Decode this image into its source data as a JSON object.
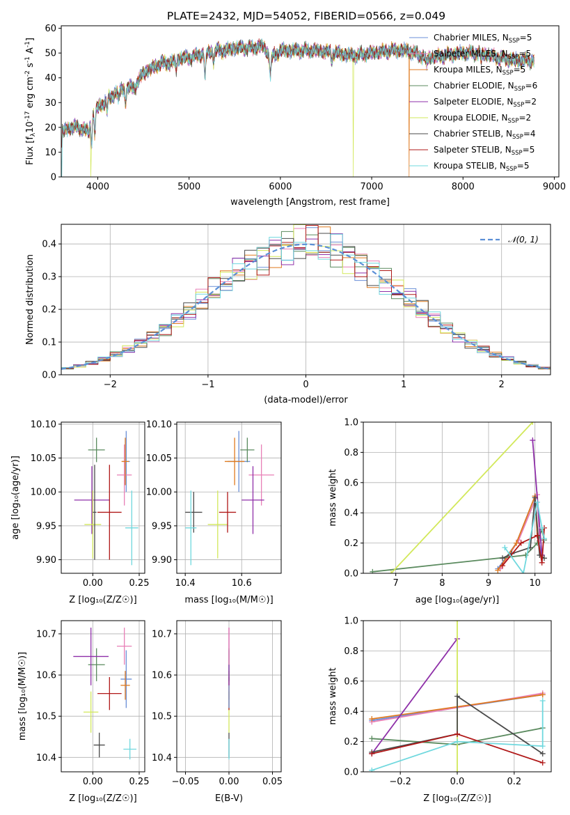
{
  "title": "PLATE=2432, MJD=54052, FIBERID=0566, z=0.049",
  "colors": {
    "Chabrier MILES": "#6a8fd8",
    "Salpeter MILES": "#e87fb6",
    "Kroupa MILES": "#e07a1f",
    "Chabrier ELODIE": "#5a8a5e",
    "Salpeter ELODIE": "#8e2fa8",
    "Kroupa ELODIE": "#d2e85a",
    "Chabrier STELIB": "#4a4a4a",
    "Salpeter STELIB": "#b01818",
    "Kroupa STELIB": "#6fd8de",
    "normal": "#5b8fd6"
  },
  "chart_data": [
    {
      "id": "spectrum",
      "type": "line",
      "xlabel": "wavelength [Angstrom, rest frame]",
      "ylabel_parts": [
        "Flux [f",
        "λ",
        "10",
        "-17",
        " erg cm",
        "-2",
        " s",
        "-1",
        " A",
        "-1",
        "]"
      ],
      "xlim": [
        3600,
        9050
      ],
      "ylim": [
        0,
        61
      ],
      "xticks": [
        4000,
        5000,
        6000,
        7000,
        8000,
        9000
      ],
      "yticks": [
        0,
        10,
        20,
        30,
        40,
        50,
        60
      ],
      "anchors": [
        [
          3600,
          18
        ],
        [
          3700,
          20
        ],
        [
          3800,
          20
        ],
        [
          3900,
          18
        ],
        [
          3950,
          26
        ],
        [
          4000,
          28
        ],
        [
          4100,
          31
        ],
        [
          4200,
          34
        ],
        [
          4300,
          36
        ],
        [
          4400,
          36
        ],
        [
          4500,
          42
        ],
        [
          4600,
          44
        ],
        [
          4700,
          46
        ],
        [
          4800,
          46
        ],
        [
          4900,
          48
        ],
        [
          5000,
          48
        ],
        [
          5100,
          49
        ],
        [
          5200,
          50
        ],
        [
          5300,
          51
        ],
        [
          5400,
          51
        ],
        [
          5500,
          52
        ],
        [
          5600,
          52
        ],
        [
          5700,
          52
        ],
        [
          5800,
          53
        ],
        [
          5900,
          48
        ],
        [
          6000,
          51
        ],
        [
          6200,
          51
        ],
        [
          6400,
          51
        ],
        [
          6600,
          50
        ],
        [
          6800,
          49
        ],
        [
          7000,
          50
        ],
        [
          7200,
          51
        ],
        [
          7400,
          51
        ],
        [
          7600,
          48
        ],
        [
          7800,
          49
        ],
        [
          8000,
          50
        ],
        [
          8200,
          50
        ],
        [
          8400,
          48
        ],
        [
          8600,
          47
        ],
        [
          8780,
          47
        ]
      ],
      "dips": [
        [
          3933,
          10
        ],
        [
          3968,
          9
        ],
        [
          4102,
          5
        ],
        [
          4227,
          4
        ],
        [
          4304,
          6
        ],
        [
          4861,
          4
        ],
        [
          5175,
          10
        ],
        [
          5270,
          4
        ],
        [
          5890,
          8
        ],
        [
          6563,
          3
        ],
        [
          7600,
          3
        ],
        [
          8200,
          3
        ]
      ],
      "drops": [
        [
          3608,
          "Kroupa STELIB"
        ],
        [
          3925,
          "Kroupa ELODIE"
        ],
        [
          6800,
          "Kroupa ELODIE"
        ],
        [
          7408,
          "Kroupa MILES"
        ]
      ],
      "legend": [
        {
          "imf": "Chabrier MILES",
          "nssp": "5"
        },
        {
          "imf": "Salpeter MILES",
          "nssp": "5"
        },
        {
          "imf": "Kroupa MILES",
          "nssp": "5"
        },
        {
          "imf": "Chabrier ELODIE",
          "nssp": "6"
        },
        {
          "imf": "Salpeter ELODIE",
          "nssp": "2"
        },
        {
          "imf": "Kroupa ELODIE",
          "nssp": "2"
        },
        {
          "imf": "Chabrier STELIB",
          "nssp": "4"
        },
        {
          "imf": "Salpeter STELIB",
          "nssp": "5"
        },
        {
          "imf": "Kroupa STELIB",
          "nssp": "5"
        }
      ]
    },
    {
      "id": "residual-histogram",
      "type": "bar",
      "xlabel": "(data-model)/error",
      "ylabel": "Normed distribution",
      "xlim": [
        -2.5,
        2.5
      ],
      "ylim": [
        0,
        0.46
      ],
      "xticks": [
        -2,
        -1,
        0,
        1,
        2
      ],
      "yticks": [
        0.0,
        0.1,
        0.2,
        0.3,
        0.4
      ],
      "bin_width": 0.125,
      "legend_label": "𝒩(0, 1)",
      "series_names": [
        "Chabrier MILES",
        "Salpeter MILES",
        "Kroupa MILES",
        "Chabrier ELODIE",
        "Salpeter ELODIE",
        "Kroupa ELODIE",
        "Chabrier STELIB",
        "Salpeter STELIB",
        "Kroupa STELIB"
      ]
    },
    {
      "id": "age-vs-z",
      "type": "scatter",
      "xlabel": "Z [log₁₀(Z/Z☉)]",
      "ylabel": "age  [log₁₀(age/yr)]",
      "xlim": [
        -0.17,
        0.28
      ],
      "ylim": [
        9.88,
        10.103
      ],
      "xticks": [
        0.0,
        0.25
      ],
      "yticks": [
        9.9,
        9.95,
        10.0,
        10.05,
        10.1
      ],
      "points": [
        {
          "series": "Chabrier MILES",
          "x": 0.18,
          "xe": 0.02,
          "y": 10.045,
          "ye": 0.045
        },
        {
          "series": "Salpeter MILES",
          "x": 0.17,
          "xe": 0.04,
          "y": 10.025,
          "ye": 0.045
        },
        {
          "series": "Kroupa MILES",
          "x": 0.175,
          "xe": 0.02,
          "y": 10.045,
          "ye": 0.035
        },
        {
          "series": "Chabrier ELODIE",
          "x": 0.02,
          "xe": 0.045,
          "y": 10.062,
          "ye": 0.018
        },
        {
          "series": "Salpeter ELODIE",
          "x": -0.005,
          "xe": 0.095,
          "y": 9.988,
          "ye": 0.05
        },
        {
          "series": "Kroupa ELODIE",
          "x": 0.0,
          "xe": 0.045,
          "y": 9.952,
          "ye": 0.05
        },
        {
          "series": "Chabrier STELIB",
          "x": 0.01,
          "xe": 0.01,
          "y": 9.97,
          "ye": 0.07
        },
        {
          "series": "Salpeter STELIB",
          "x": 0.09,
          "xe": 0.065,
          "y": 9.97,
          "ye": 0.07
        },
        {
          "series": "Kroupa STELIB",
          "x": 0.21,
          "xe": 0.035,
          "y": 9.947,
          "ye": 0.055
        }
      ]
    },
    {
      "id": "age-vs-mass",
      "type": "scatter",
      "xlabel": "mass [log₁₀(M/M☉)]",
      "ylabel": "",
      "xlim": [
        10.37,
        10.74
      ],
      "ylim": [
        9.88,
        10.103
      ],
      "xticks": [
        10.4,
        10.6
      ],
      "yticks": [
        9.9,
        9.95,
        10.0,
        10.05,
        10.1
      ],
      "points": [
        {
          "series": "Chabrier MILES",
          "x": 10.59,
          "xe": 0.04,
          "y": 10.045,
          "ye": 0.045
        },
        {
          "series": "Salpeter MILES",
          "x": 10.67,
          "xe": 0.045,
          "y": 10.025,
          "ye": 0.045
        },
        {
          "series": "Kroupa MILES",
          "x": 10.575,
          "xe": 0.035,
          "y": 10.045,
          "ye": 0.035
        },
        {
          "series": "Chabrier ELODIE",
          "x": 10.62,
          "xe": 0.025,
          "y": 10.062,
          "ye": 0.018
        },
        {
          "series": "Salpeter ELODIE",
          "x": 10.64,
          "xe": 0.04,
          "y": 9.988,
          "ye": 0.05
        },
        {
          "series": "Kroupa ELODIE",
          "x": 10.515,
          "xe": 0.035,
          "y": 9.952,
          "ye": 0.05
        },
        {
          "series": "Chabrier STELIB",
          "x": 10.43,
          "xe": 0.03,
          "y": 9.97,
          "ye": 0.03
        },
        {
          "series": "Salpeter STELIB",
          "x": 10.55,
          "xe": 0.03,
          "y": 9.97,
          "ye": 0.03
        },
        {
          "series": "Kroupa STELIB",
          "x": 10.42,
          "xe": 0.02,
          "y": 9.947,
          "ye": 0.055
        }
      ]
    },
    {
      "id": "massweight-vs-age",
      "type": "line",
      "xlabel": "age  [log₁₀(age/yr)]",
      "ylabel": "mass weight",
      "xlim": [
        6.3,
        10.35
      ],
      "ylim": [
        0,
        1.0
      ],
      "xticks": [
        7,
        8,
        9,
        10
      ],
      "yticks": [
        0.0,
        0.2,
        0.4,
        0.6,
        0.8,
        1.0
      ],
      "series": [
        {
          "name": "Chabrier MILES",
          "x": [
            9.2,
            9.6,
            10.0,
            10.05,
            10.15
          ],
          "y": [
            0.03,
            0.2,
            0.51,
            0.25,
            0.12
          ]
        },
        {
          "name": "Salpeter MILES",
          "x": [
            9.25,
            9.65,
            10.05,
            10.1
          ],
          "y": [
            0.03,
            0.22,
            0.52,
            0.22
          ]
        },
        {
          "name": "Kroupa MILES",
          "x": [
            9.2,
            9.6,
            10.0,
            10.05
          ],
          "y": [
            0.02,
            0.2,
            0.51,
            0.25
          ]
        },
        {
          "name": "Chabrier ELODIE",
          "x": [
            6.5,
            9.8,
            10.05,
            10.15,
            10.2
          ],
          "y": [
            0.01,
            0.12,
            0.2,
            0.29,
            0.22
          ]
        },
        {
          "name": "Salpeter ELODIE",
          "x": [
            9.95,
            10.15
          ],
          "y": [
            0.88,
            0.12
          ]
        },
        {
          "name": "Kroupa ELODIE",
          "x": [
            6.9,
            9.95
          ],
          "y": [
            0.0,
            1.0
          ]
        },
        {
          "name": "Chabrier STELIB",
          "x": [
            9.3,
            9.5,
            9.9,
            10.0,
            10.1,
            10.2
          ],
          "y": [
            0.1,
            0.13,
            0.17,
            0.5,
            0.12,
            0.1
          ]
        },
        {
          "name": "Salpeter STELIB",
          "x": [
            9.3,
            9.7,
            10.05,
            10.15,
            10.2
          ],
          "y": [
            0.05,
            0.2,
            0.25,
            0.07,
            0.3
          ]
        },
        {
          "name": "Kroupa STELIB",
          "x": [
            9.35,
            9.75,
            10.05,
            10.15,
            10.2
          ],
          "y": [
            0.17,
            0.0,
            0.47,
            0.3,
            0.23
          ]
        }
      ]
    },
    {
      "id": "mass-vs-z",
      "type": "scatter",
      "xlabel": "Z [log₁₀(Z/Z☉)]",
      "ylabel": "mass [log₁₀(M/M☉)]",
      "xlim": [
        -0.17,
        0.28
      ],
      "ylim": [
        10.365,
        10.732
      ],
      "xticks": [
        0.0,
        0.25
      ],
      "yticks": [
        10.4,
        10.5,
        10.6,
        10.7
      ],
      "points": [
        {
          "series": "Chabrier MILES",
          "x": 0.18,
          "xe": 0.03,
          "y": 10.59,
          "ye": 0.07
        },
        {
          "series": "Salpeter MILES",
          "x": 0.17,
          "xe": 0.04,
          "y": 10.67,
          "ye": 0.045
        },
        {
          "series": "Kroupa MILES",
          "x": 0.175,
          "xe": 0.025,
          "y": 10.575,
          "ye": 0.035
        },
        {
          "series": "Chabrier ELODIE",
          "x": 0.02,
          "xe": 0.045,
          "y": 10.625,
          "ye": 0.04
        },
        {
          "series": "Salpeter ELODIE",
          "x": -0.01,
          "xe": 0.095,
          "y": 10.645,
          "ye": 0.07
        },
        {
          "series": "Kroupa ELODIE",
          "x": -0.01,
          "xe": 0.04,
          "y": 10.51,
          "ye": 0.05
        },
        {
          "series": "Chabrier STELIB",
          "x": 0.035,
          "xe": 0.03,
          "y": 10.43,
          "ye": 0.03
        },
        {
          "series": "Salpeter STELIB",
          "x": 0.09,
          "xe": 0.065,
          "y": 10.555,
          "ye": 0.04
        },
        {
          "series": "Kroupa STELIB",
          "x": 0.2,
          "xe": 0.035,
          "y": 10.42,
          "ye": 0.025
        }
      ]
    },
    {
      "id": "mass-vs-ebv",
      "type": "scatter",
      "xlabel": "E(B-V)",
      "ylabel": "",
      "xlim": [
        -0.06,
        0.06
      ],
      "ylim": [
        10.365,
        10.732
      ],
      "xticks": [
        -0.05,
        0.0,
        0.05
      ],
      "xtick_labels": [
        "−0.05",
        "0.00",
        "0.05"
      ],
      "yticks": [
        10.4,
        10.5,
        10.6,
        10.7
      ],
      "points": [
        {
          "series": "Chabrier STELIB",
          "x": 0,
          "y": 10.43,
          "ye": 0.03
        },
        {
          "series": "Kroupa STELIB",
          "x": 0,
          "y": 10.42,
          "ye": 0.025
        },
        {
          "series": "Kroupa ELODIE",
          "x": 0,
          "y": 10.51,
          "ye": 0.05
        },
        {
          "series": "Salpeter STELIB",
          "x": 0,
          "y": 10.555,
          "ye": 0.04
        },
        {
          "series": "Kroupa MILES",
          "x": 0,
          "y": 10.575,
          "ye": 0.035
        },
        {
          "series": "Chabrier MILES",
          "x": 0,
          "y": 10.59,
          "ye": 0.07
        },
        {
          "series": "Chabrier ELODIE",
          "x": 0,
          "y": 10.625,
          "ye": 0.04
        },
        {
          "series": "Salpeter ELODIE",
          "x": 0,
          "y": 10.645,
          "ye": 0.07
        },
        {
          "series": "Salpeter MILES",
          "x": 0,
          "y": 10.67,
          "ye": 0.045
        }
      ]
    },
    {
      "id": "massweight-vs-z",
      "type": "line",
      "xlabel": "Z [log₁₀(Z/Z☉)]",
      "ylabel": "mass weight",
      "xlim": [
        -0.33,
        0.33
      ],
      "ylim": [
        0,
        1.0
      ],
      "xticks": [
        -0.2,
        0.0,
        0.2
      ],
      "xtick_labels": [
        "−0.2",
        "0.0",
        "0.2"
      ],
      "yticks": [
        0.0,
        0.2,
        0.4,
        0.6,
        0.8,
        1.0
      ],
      "series": [
        {
          "name": "Chabrier MILES",
          "x": [
            -0.3,
            0.3
          ],
          "y": [
            0.34,
            0.51
          ]
        },
        {
          "name": "Salpeter MILES",
          "x": [
            -0.3,
            0.3
          ],
          "y": [
            0.33,
            0.52
          ]
        },
        {
          "name": "Kroupa MILES",
          "x": [
            -0.3,
            0.3
          ],
          "y": [
            0.35,
            0.51
          ]
        },
        {
          "name": "Chabrier ELODIE",
          "x": [
            -0.3,
            0.0,
            0.3
          ],
          "y": [
            0.22,
            0.18,
            0.29
          ]
        },
        {
          "name": "Salpeter ELODIE",
          "x": [
            -0.3,
            0.0
          ],
          "y": [
            0.12,
            0.88
          ]
        },
        {
          "name": "Kroupa ELODIE",
          "x": [
            0.0,
            0.0
          ],
          "y": [
            0.0,
            1.0
          ]
        },
        {
          "name": "Chabrier STELIB",
          "x": [
            -0.3,
            0.0,
            0.0,
            0.3
          ],
          "y": [
            0.13,
            0.25,
            0.5,
            0.12
          ]
        },
        {
          "name": "Salpeter STELIB",
          "x": [
            -0.3,
            0.0,
            0.3
          ],
          "y": [
            0.12,
            0.25,
            0.06
          ]
        },
        {
          "name": "Kroupa STELIB",
          "x": [
            -0.3,
            0.0,
            0.3,
            0.3
          ],
          "y": [
            0.01,
            0.2,
            0.17,
            0.47
          ]
        }
      ]
    }
  ]
}
